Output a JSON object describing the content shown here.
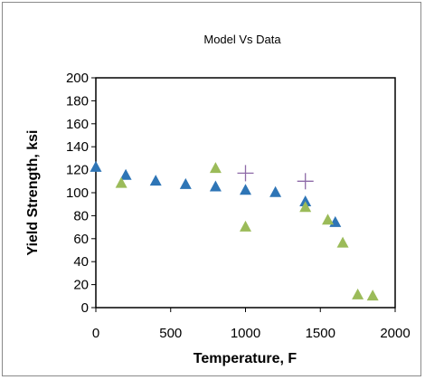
{
  "chart_data": {
    "type": "scatter",
    "title": "Model Vs Data",
    "xlabel": "Temperature, F",
    "ylabel": "Yield Strength, ksi",
    "xlim": [
      0,
      2000
    ],
    "ylim": [
      0,
      200
    ],
    "xticks": [
      0,
      500,
      1000,
      1500,
      2000
    ],
    "yticks": [
      0,
      20,
      40,
      60,
      80,
      100,
      120,
      140,
      160,
      180,
      200
    ],
    "grid": false,
    "legend": "none",
    "series": [
      {
        "marker": "triangle",
        "color": "#2e75b6",
        "points": [
          {
            "x": 0,
            "y": 122
          },
          {
            "x": 200,
            "y": 115
          },
          {
            "x": 400,
            "y": 110
          },
          {
            "x": 600,
            "y": 107
          },
          {
            "x": 800,
            "y": 105
          },
          {
            "x": 1000,
            "y": 102
          },
          {
            "x": 1200,
            "y": 100
          },
          {
            "x": 1400,
            "y": 92
          },
          {
            "x": 1600,
            "y": 74
          }
        ]
      },
      {
        "marker": "triangle",
        "color": "#9bbb59",
        "points": [
          {
            "x": 170,
            "y": 108
          },
          {
            "x": 800,
            "y": 121
          },
          {
            "x": 1000,
            "y": 70
          },
          {
            "x": 1400,
            "y": 87
          },
          {
            "x": 1550,
            "y": 76
          },
          {
            "x": 1650,
            "y": 56
          },
          {
            "x": 1750,
            "y": 11
          },
          {
            "x": 1850,
            "y": 10
          }
        ]
      },
      {
        "marker": "plus",
        "color": "#8e6aa8",
        "points": [
          {
            "x": 1000,
            "y": 117
          },
          {
            "x": 1400,
            "y": 110
          }
        ]
      }
    ]
  }
}
